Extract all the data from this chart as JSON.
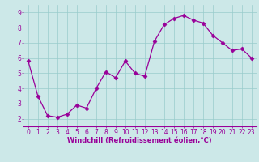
{
  "x": [
    0,
    1,
    2,
    3,
    4,
    5,
    6,
    7,
    8,
    9,
    10,
    11,
    12,
    13,
    14,
    15,
    16,
    17,
    18,
    19,
    20,
    21,
    22,
    23
  ],
  "y": [
    5.8,
    3.5,
    2.2,
    2.1,
    2.3,
    2.9,
    2.7,
    4.0,
    5.1,
    4.7,
    5.8,
    5.0,
    4.8,
    7.1,
    8.2,
    8.6,
    8.8,
    8.5,
    8.3,
    7.5,
    7.0,
    6.5,
    6.6,
    6.0
  ],
  "line_color": "#990099",
  "marker": "D",
  "marker_size": 2.5,
  "bg_color": "#cce8e8",
  "grid_color": "#99cccc",
  "xlabel": "Windchill (Refroidissement éolien,°C)",
  "xlabel_color": "#990099",
  "xlabel_fontsize": 6,
  "tick_color": "#990099",
  "tick_fontsize": 5.5,
  "ylim": [
    1.5,
    9.5
  ],
  "xlim": [
    -0.5,
    23.5
  ],
  "yticks": [
    2,
    3,
    4,
    5,
    6,
    7,
    8,
    9
  ],
  "xticks": [
    0,
    1,
    2,
    3,
    4,
    5,
    6,
    7,
    8,
    9,
    10,
    11,
    12,
    13,
    14,
    15,
    16,
    17,
    18,
    19,
    20,
    21,
    22,
    23
  ]
}
